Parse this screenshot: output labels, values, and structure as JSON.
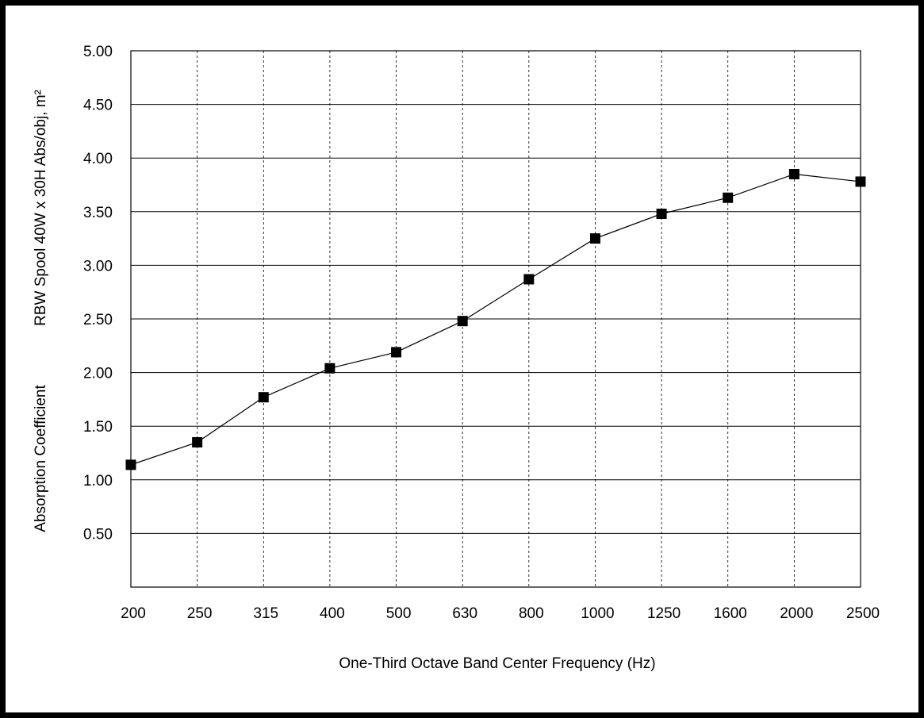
{
  "chart_data": {
    "type": "line",
    "categories": [
      "200",
      "250",
      "315",
      "400",
      "500",
      "630",
      "800",
      "1000",
      "1250",
      "1600",
      "2000",
      "2500"
    ],
    "series": [
      {
        "values": [
          1.14,
          1.35,
          1.77,
          2.04,
          2.19,
          2.48,
          2.87,
          3.25,
          3.48,
          3.63,
          3.85,
          3.78
        ],
        "marker": "square",
        "color": "#000000"
      }
    ],
    "title": "",
    "xlabel": "One-Third Octave Band Center Frequency (Hz)",
    "ylabel_line1": "Absorption Coefficient",
    "ylabel_line2": "RBW Spool 40W x 30H Abs/obj, m²",
    "ylim": [
      0,
      5
    ],
    "yticks": [
      "0.50",
      "1.00",
      "1.50",
      "2.00",
      "2.50",
      "3.00",
      "3.50",
      "4.00",
      "4.50",
      "5.00"
    ],
    "ytick_values": [
      0.5,
      1.0,
      1.5,
      2.0,
      2.5,
      3.0,
      3.5,
      4.0,
      4.5,
      5.0
    ],
    "grid": {
      "horizontal": "solid",
      "vertical": "dashed"
    },
    "legend": "none"
  }
}
